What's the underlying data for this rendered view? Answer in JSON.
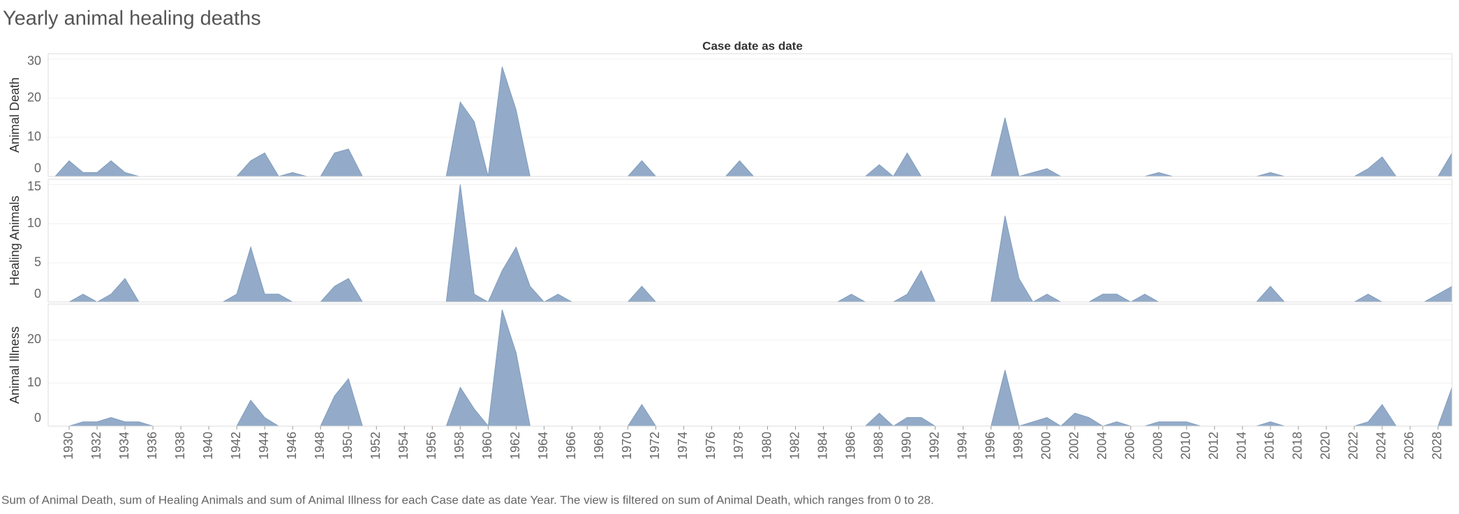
{
  "chart_data": {
    "type": "area",
    "title": "Yearly animal healing deaths",
    "x_label": "Case date as date",
    "caption": "Sum of Animal Death, sum of Healing Animals and sum of Animal Illness for each Case date as date Year. The view is filtered on sum of Animal Death, which ranges from 0 to 28.",
    "grid": true,
    "xlim": [
      1928.5,
      2029
    ],
    "xticks": [
      1930,
      1932,
      1934,
      1936,
      1938,
      1940,
      1942,
      1944,
      1946,
      1948,
      1950,
      1952,
      1954,
      1956,
      1958,
      1960,
      1962,
      1964,
      1966,
      1968,
      1970,
      1972,
      1974,
      1976,
      1978,
      1980,
      1982,
      1984,
      1986,
      1988,
      1990,
      1992,
      1994,
      1996,
      1998,
      2000,
      2002,
      2004,
      2006,
      2008,
      2010,
      2012,
      2014,
      2016,
      2018,
      2020,
      2022,
      2024,
      2026,
      2028
    ],
    "x": [
      1929,
      1930,
      1931,
      1932,
      1933,
      1934,
      1935,
      1936,
      1937,
      1938,
      1939,
      1940,
      1941,
      1942,
      1943,
      1944,
      1945,
      1946,
      1947,
      1948,
      1949,
      1950,
      1951,
      1952,
      1953,
      1954,
      1955,
      1956,
      1957,
      1958,
      1959,
      1960,
      1961,
      1962,
      1963,
      1964,
      1965,
      1966,
      1967,
      1968,
      1969,
      1970,
      1971,
      1972,
      1973,
      1974,
      1975,
      1976,
      1977,
      1978,
      1979,
      1980,
      1981,
      1982,
      1983,
      1984,
      1985,
      1986,
      1987,
      1988,
      1989,
      1990,
      1991,
      1992,
      1993,
      1994,
      1995,
      1996,
      1997,
      1998,
      1999,
      2000,
      2001,
      2002,
      2003,
      2004,
      2005,
      2006,
      2007,
      2008,
      2009,
      2010,
      2011,
      2012,
      2013,
      2014,
      2015,
      2016,
      2017,
      2018,
      2019,
      2020,
      2021,
      2022,
      2023,
      2024,
      2025,
      2026,
      2027,
      2028,
      2029
    ],
    "series": [
      {
        "name": "Animal Death",
        "color": "#93abc8",
        "ylim": [
          0,
          31
        ],
        "yticks": [
          0,
          10,
          20,
          30
        ],
        "values": [
          0,
          4,
          1,
          1,
          4,
          1,
          0,
          0,
          0,
          0,
          0,
          0,
          0,
          0,
          4,
          6,
          0,
          1,
          0,
          0,
          6,
          7,
          0,
          0,
          0,
          0,
          0,
          0,
          0,
          19,
          14,
          0,
          28,
          17,
          0,
          0,
          0,
          0,
          0,
          0,
          0,
          0,
          4,
          0,
          0,
          0,
          0,
          0,
          0,
          4,
          0,
          0,
          0,
          0,
          0,
          0,
          0,
          0,
          0,
          3,
          0,
          6,
          0,
          0,
          0,
          0,
          0,
          0,
          15,
          0,
          1,
          2,
          0,
          0,
          0,
          0,
          0,
          0,
          0,
          1,
          0,
          0,
          0,
          0,
          0,
          0,
          0,
          1,
          0,
          0,
          0,
          0,
          0,
          0,
          2,
          5,
          0,
          0,
          0,
          0,
          6
        ]
      },
      {
        "name": "Healing Animals",
        "color": "#93abc8",
        "ylim": [
          0,
          15.5
        ],
        "yticks": [
          0,
          5,
          10,
          15
        ],
        "values": [
          0,
          0,
          1,
          0,
          1,
          3,
          0,
          0,
          0,
          0,
          0,
          0,
          0,
          1,
          7,
          1,
          1,
          0,
          0,
          0,
          2,
          3,
          0,
          0,
          0,
          0,
          0,
          0,
          0,
          15,
          1,
          0,
          4,
          7,
          2,
          0,
          1,
          0,
          0,
          0,
          0,
          0,
          2,
          0,
          0,
          0,
          0,
          0,
          0,
          0,
          0,
          0,
          0,
          0,
          0,
          0,
          0,
          1,
          0,
          0,
          0,
          1,
          4,
          0,
          0,
          0,
          0,
          0,
          11,
          3,
          0,
          1,
          0,
          0,
          0,
          1,
          1,
          0,
          1,
          0,
          0,
          0,
          0,
          0,
          0,
          0,
          0,
          2,
          0,
          0,
          0,
          0,
          0,
          0,
          1,
          0,
          0,
          0,
          0,
          1,
          2
        ]
      },
      {
        "name": "Animal Illness",
        "color": "#93abc8",
        "ylim": [
          0,
          28
        ],
        "yticks": [
          0,
          10,
          20
        ],
        "values": [
          0,
          0,
          1,
          1,
          2,
          1,
          1,
          0,
          0,
          0,
          0,
          0,
          0,
          0,
          6,
          2,
          0,
          0,
          0,
          0,
          7,
          11,
          0,
          0,
          0,
          0,
          0,
          0,
          0,
          9,
          4,
          0,
          27,
          17,
          0,
          0,
          0,
          0,
          0,
          0,
          0,
          0,
          5,
          0,
          0,
          0,
          0,
          0,
          0,
          0,
          0,
          0,
          0,
          0,
          0,
          0,
          0,
          0,
          0,
          3,
          0,
          2,
          2,
          0,
          0,
          0,
          0,
          0,
          13,
          0,
          1,
          2,
          0,
          3,
          2,
          0,
          1,
          0,
          0,
          1,
          1,
          1,
          0,
          0,
          0,
          0,
          0,
          1,
          0,
          0,
          0,
          0,
          0,
          0,
          1,
          5,
          0,
          0,
          0,
          0,
          9
        ]
      }
    ]
  }
}
